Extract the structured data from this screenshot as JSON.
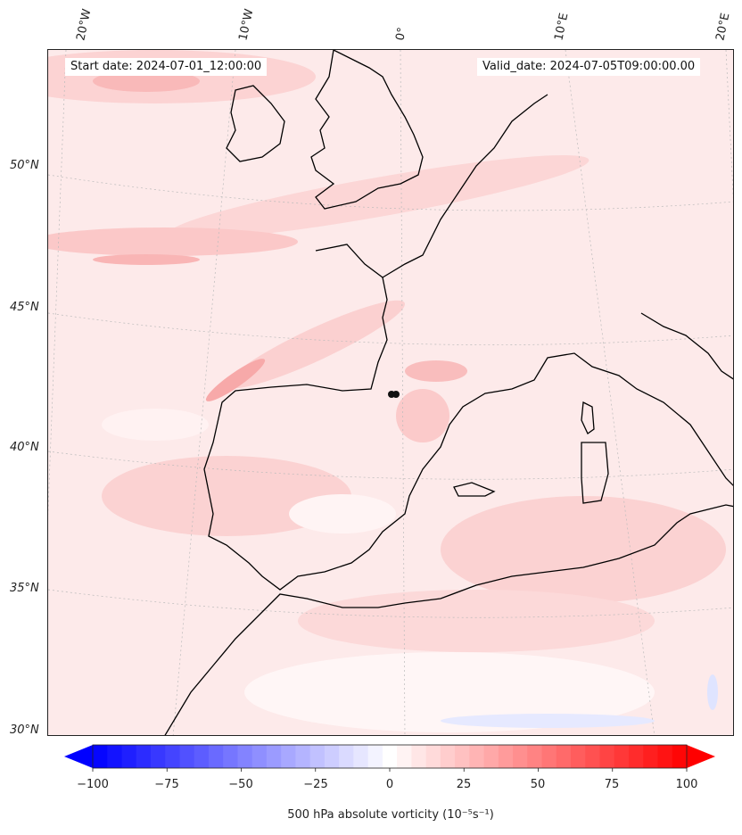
{
  "map": {
    "start_label": "Start date: 2024-07-01_12:00:00",
    "valid_label": "Valid_date: 2024-07-05T09:00:00.00",
    "lon_labels": [
      "20°W",
      "10°W",
      "0°",
      "10°E",
      "20°E"
    ],
    "lat_labels": [
      "50°N",
      "45°N",
      "40°N",
      "35°N",
      "30°N"
    ],
    "marker": "observation-site"
  },
  "colorbar": {
    "title": "500 hPa absolute vorticity (10⁻⁵s⁻¹)",
    "ticks": [
      "−100",
      "−75",
      "−50",
      "−25",
      "0",
      "25",
      "50",
      "75",
      "100"
    ],
    "min": -100,
    "max": 100,
    "levels": 41,
    "neg_color": "#0000ff",
    "pos_color": "#ff0000",
    "mid_color": "#ffffff"
  },
  "colors": {
    "background_field": "#fdeaea",
    "land_line": "#000000",
    "grid": "#bbbbbb"
  }
}
